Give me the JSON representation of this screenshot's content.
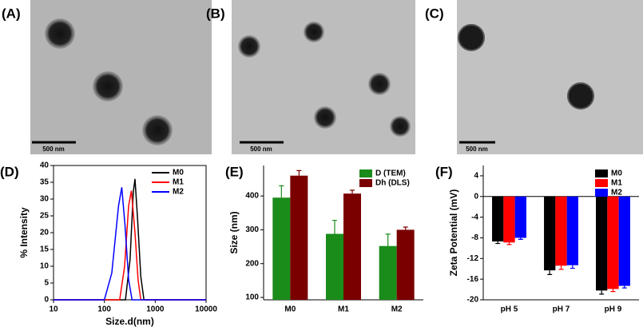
{
  "images": [
    {
      "label": "(A)",
      "scale_bar": "500 nm"
    },
    {
      "label": "(B)",
      "scale_bar": "500 nm"
    },
    {
      "label": "(C)",
      "scale_bar": "500 nm"
    }
  ],
  "chart_data": [
    {
      "type": "line",
      "label": "(D)",
      "x_label": "Size.d(nm)",
      "y_label": "% Intensity",
      "x_scale": "log",
      "xlim": [
        10,
        10000
      ],
      "xticks": [
        10,
        100,
        1000,
        10000
      ],
      "ylim": [
        0,
        40
      ],
      "yticks": [
        0,
        5,
        10,
        15,
        20,
        25,
        30,
        35,
        40
      ],
      "legend": "upper right",
      "series": [
        {
          "name": "M0",
          "color": "#000000",
          "x": [
            10,
            260,
            320,
            370,
            400,
            450,
            520,
            600,
            10000
          ],
          "values": [
            0,
            0,
            12,
            32,
            36,
            24,
            7,
            0,
            0
          ]
        },
        {
          "name": "M1",
          "color": "#ff0000",
          "x": [
            10,
            200,
            250,
            300,
            340,
            400,
            460,
            520,
            10000
          ],
          "values": [
            0,
            0,
            10,
            28,
            32.5,
            20,
            6,
            0,
            0
          ]
        },
        {
          "name": "M2",
          "color": "#0000ff",
          "x": [
            10,
            100,
            140,
            190,
            220,
            255,
            300,
            350,
            10000
          ],
          "values": [
            0,
            0,
            8,
            28,
            33.5,
            22,
            6,
            0,
            0
          ]
        }
      ]
    },
    {
      "type": "bar",
      "label": "(E)",
      "y_label": "Size (nm)",
      "categories": [
        "M0",
        "M1",
        "M2"
      ],
      "ylim": [
        93,
        490
      ],
      "yticks": [
        100,
        200,
        300,
        400
      ],
      "legend": "upper right",
      "series": [
        {
          "name": "D (TEM)",
          "color": "#1a8c1a",
          "values": [
            395,
            288,
            252
          ],
          "errors": [
            35,
            40,
            35
          ]
        },
        {
          "name": "Dh (DLS)",
          "color": "#7a0000",
          "values": [
            460,
            407,
            300
          ],
          "errors": [
            15,
            10,
            8
          ]
        }
      ]
    },
    {
      "type": "bar",
      "label": "(F)",
      "y_label": "Zeta Potential (mV)",
      "categories": [
        "pH 5",
        "pH 7",
        "pH 9"
      ],
      "ylim": [
        -20,
        6
      ],
      "yticks": [
        -20,
        -16,
        -12,
        -8,
        -4,
        0,
        4
      ],
      "legend": "upper right",
      "series": [
        {
          "name": "M0",
          "color": "#000000",
          "values": [
            -8.7,
            -14.3,
            -18.2
          ],
          "errors": [
            0.4,
            0.8,
            0.7
          ]
        },
        {
          "name": "M1",
          "color": "#ff0000",
          "values": [
            -8.9,
            -13.4,
            -17.9
          ],
          "errors": [
            0.4,
            0.7,
            0.5
          ]
        },
        {
          "name": "M2",
          "color": "#0000ff",
          "values": [
            -8.0,
            -13.3,
            -17.3
          ],
          "errors": [
            0.3,
            0.6,
            0.4
          ]
        }
      ]
    }
  ]
}
